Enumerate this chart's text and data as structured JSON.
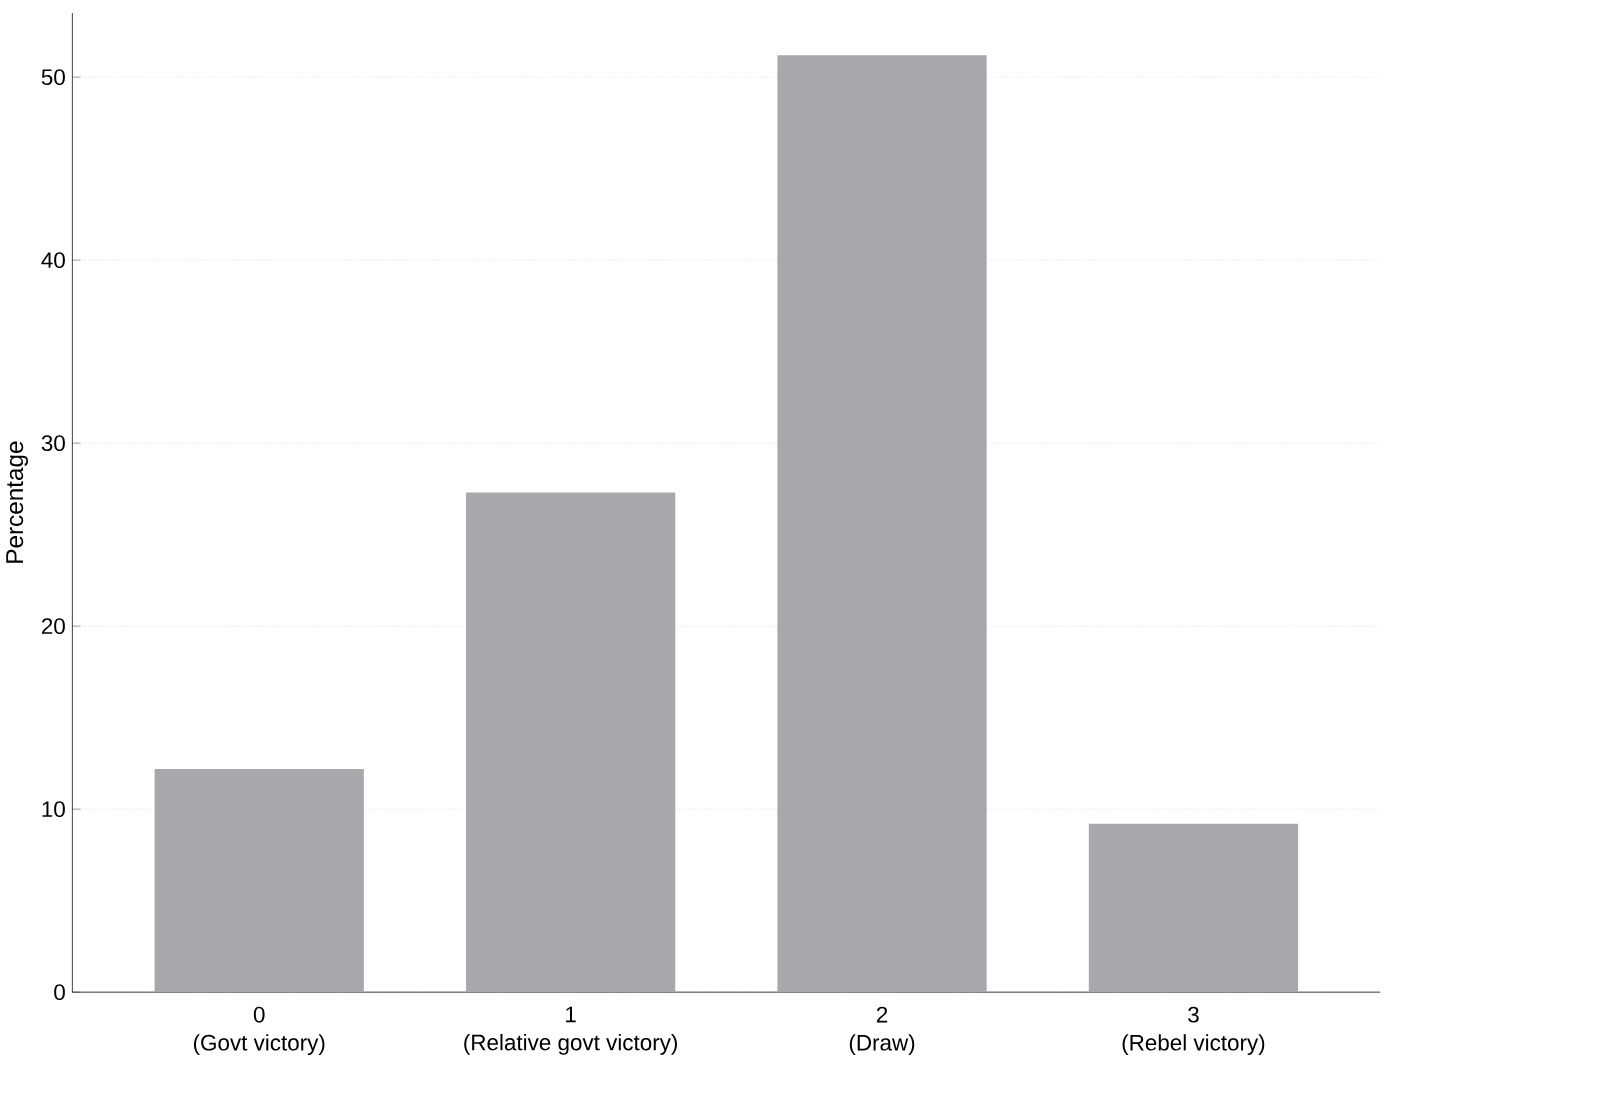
{
  "chart_data": {
    "type": "bar",
    "ylabel": "Percentage",
    "categories": [
      "0\n(Govt victory)",
      "1\n(Relative govt victory)",
      "2\n(Draw)",
      "3\n(Rebel victory)"
    ],
    "values": [
      12.2,
      27.3,
      51.2,
      9.2
    ],
    "color": "#a7a8ab",
    "ylim": [
      0,
      53.5
    ],
    "yticks": [
      0,
      10,
      20,
      30,
      40,
      50
    ],
    "grid": "y"
  }
}
